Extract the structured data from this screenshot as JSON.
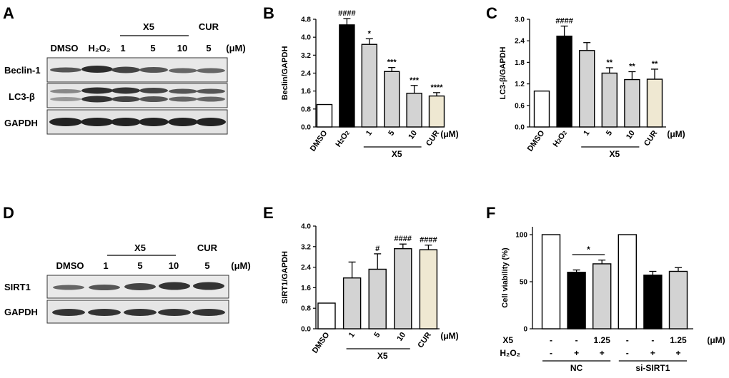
{
  "panels": {
    "A": {
      "letter": "A",
      "group_label": "X5",
      "cur_label": "CUR",
      "lanes": [
        "DMSO",
        "H₂O₂",
        "1",
        "5",
        "10",
        "5"
      ],
      "unit": "(μM)",
      "rows": [
        "Beclin-1",
        "LC3-β",
        "GAPDH"
      ]
    },
    "D": {
      "letter": "D",
      "group_label": "X5",
      "cur_label": "CUR",
      "lanes": [
        "DMSO",
        "1",
        "5",
        "10",
        "5"
      ],
      "unit": "(μM)",
      "rows": [
        "SIRT1",
        "GAPDH"
      ]
    },
    "B": {
      "letter": "B"
    },
    "C": {
      "letter": "C"
    },
    "E": {
      "letter": "E"
    },
    "F": {
      "letter": "F"
    }
  },
  "colors": {
    "white": "#ffffff",
    "black": "#000000",
    "gray": "#d3d3d3",
    "cream": "#efe8d2"
  },
  "chart_data": [
    {
      "id": "B",
      "type": "bar",
      "ylabel": "Beclin/GAPDH",
      "categories": [
        "DMSO",
        "H2O2",
        "1",
        "5",
        "10",
        "CUR"
      ],
      "group_label": "X5",
      "unit": "(μM)",
      "values": [
        1.0,
        4.55,
        3.68,
        2.47,
        1.5,
        1.38
      ],
      "errors": [
        0,
        0.28,
        0.25,
        0.18,
        0.35,
        0.15
      ],
      "colors": [
        "white",
        "black",
        "gray",
        "gray",
        "gray",
        "cream"
      ],
      "annotations": [
        "",
        "####",
        "*",
        "***",
        "***",
        "****"
      ],
      "ylim": [
        0,
        4.8
      ],
      "yticks": [
        "0.0",
        "0.8",
        "1.6",
        "2.4",
        "3.2",
        "4.0",
        "4.8"
      ]
    },
    {
      "id": "C",
      "type": "bar",
      "ylabel": "LC3-β/GAPDH",
      "categories": [
        "DMSO",
        "H2O2",
        "1",
        "5",
        "10",
        "CUR"
      ],
      "group_label": "X5",
      "unit": "(μM)",
      "values": [
        1.0,
        2.53,
        2.13,
        1.5,
        1.32,
        1.33
      ],
      "errors": [
        0,
        0.28,
        0.22,
        0.15,
        0.22,
        0.28
      ],
      "colors": [
        "white",
        "black",
        "gray",
        "gray",
        "gray",
        "cream"
      ],
      "annotations": [
        "",
        "####",
        "",
        "**",
        "**",
        "**"
      ],
      "ylim": [
        0,
        3.0
      ],
      "yticks": [
        "0.0",
        "0.6",
        "1.2",
        "1.8",
        "2.4",
        "3.0"
      ]
    },
    {
      "id": "E",
      "type": "bar",
      "ylabel": "SIRT1/GAPDH",
      "categories": [
        "DMSO",
        "1",
        "5",
        "10",
        "CUR"
      ],
      "group_label": "X5",
      "unit": "(μM)",
      "values": [
        1.0,
        1.98,
        2.32,
        3.12,
        3.08
      ],
      "errors": [
        0,
        0.62,
        0.6,
        0.18,
        0.18
      ],
      "colors": [
        "white",
        "gray",
        "gray",
        "gray",
        "cream"
      ],
      "annotations": [
        "",
        "",
        "#",
        "####",
        "####"
      ],
      "ylim": [
        0,
        4.0
      ],
      "yticks": [
        "0.0",
        "0.8",
        "1.6",
        "2.4",
        "3.2",
        "4.0"
      ]
    },
    {
      "id": "F",
      "type": "bar",
      "ylabel": "Cell viability (%)",
      "values": [
        100,
        60,
        69,
        100,
        57,
        61
      ],
      "errors": [
        0,
        2.5,
        4,
        0,
        4,
        4
      ],
      "colors": [
        "white",
        "black",
        "gray",
        "white",
        "black",
        "gray"
      ],
      "ylim": [
        0,
        100
      ],
      "yticks": [
        "0",
        "50",
        "100"
      ],
      "x5_row": {
        "label": "X5",
        "values": [
          "-",
          "-",
          "1.25",
          "-",
          "-",
          "1.25"
        ],
        "unit": "(μM)"
      },
      "h2o2_row": {
        "label": "H₂O₂",
        "values": [
          "-",
          "+",
          "+",
          "-",
          "+",
          "+"
        ]
      },
      "groups": [
        "NC",
        "si-SIRT1"
      ],
      "comparison": {
        "from": 1,
        "to": 2,
        "label": "*"
      }
    }
  ]
}
